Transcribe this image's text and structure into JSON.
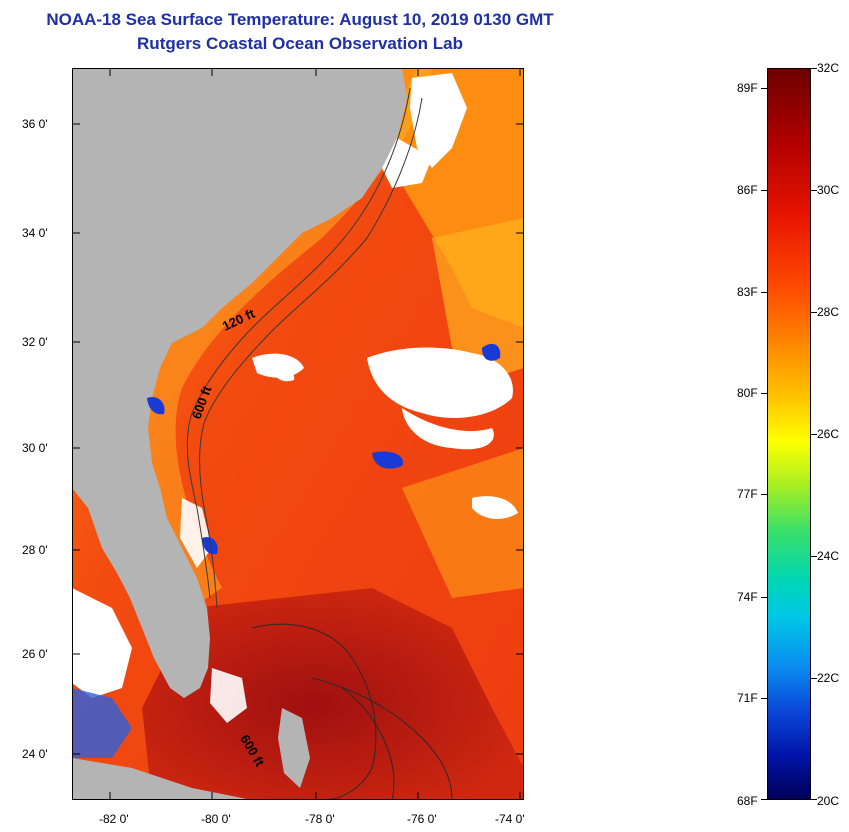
{
  "title": {
    "line1": "NOAA-18 Sea Surface Temperature:  August 10, 2019 0130 GMT",
    "line2": "Rutgers Coastal Ocean Observation Lab"
  },
  "map": {
    "lat_ticks": [
      "36 0'",
      "34 0'",
      "32 0'",
      "30 0'",
      "28 0'",
      "26 0'",
      "24 0'"
    ],
    "lon_ticks": [
      "-82 0'",
      "-80 0'",
      "-78 0'",
      "-76 0'",
      "-74 0'"
    ],
    "contour_labels": [
      "120 ft",
      "600 ft",
      "600 ft"
    ],
    "colors": {
      "land": "#b4b4b4",
      "cloud": "#ffffff",
      "warm_ocean": "#f04a10",
      "hot_ocean": "#c81a10",
      "cool_patch": "#ffb000"
    }
  },
  "colorbar": {
    "celsius": [
      "32C",
      "30C",
      "28C",
      "26C",
      "24C",
      "22C",
      "20C"
    ],
    "fahrenheit": [
      "89F",
      "86F",
      "83F",
      "80F",
      "77F",
      "74F",
      "71F",
      "68F"
    ]
  }
}
